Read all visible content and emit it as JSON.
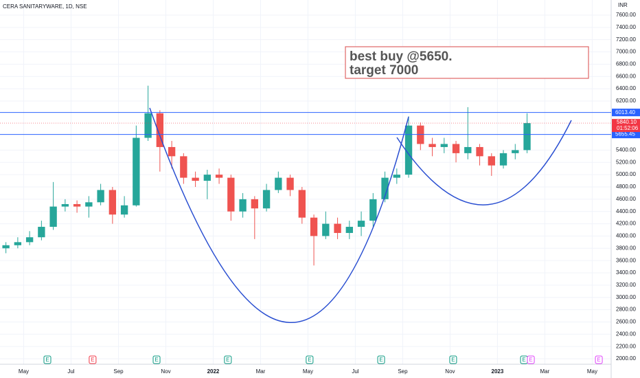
{
  "chart_data": {
    "type": "candlestick",
    "title": "CERA SANITARYWARE, 1D, NSE",
    "currency": "INR",
    "up_color": "#26a69a",
    "down_color": "#ef5350",
    "grid": true,
    "xlim": [
      0,
      25.8
    ],
    "ylim": [
      1933,
      7846
    ],
    "xticks": [
      {
        "value": 1,
        "label": "May"
      },
      {
        "value": 3,
        "label": "Jul"
      },
      {
        "value": 5,
        "label": "Sep"
      },
      {
        "value": 7,
        "label": "Nov"
      },
      {
        "value": 9,
        "label": "2022"
      },
      {
        "value": 11,
        "label": "Mar"
      },
      {
        "value": 13,
        "label": "May"
      },
      {
        "value": 15,
        "label": "Jul"
      },
      {
        "value": 17,
        "label": "Sep"
      },
      {
        "value": 19,
        "label": "Nov"
      },
      {
        "value": 21,
        "label": "2023"
      },
      {
        "value": 23,
        "label": "Mar"
      },
      {
        "value": 25,
        "label": "May"
      }
    ],
    "yticks": [
      {
        "value": 2000,
        "label": "2000.00"
      },
      {
        "value": 2200,
        "label": "2200.00"
      },
      {
        "value": 2400,
        "label": "2400.00"
      },
      {
        "value": 2600,
        "label": "2600.00"
      },
      {
        "value": 2800,
        "label": "2800.00"
      },
      {
        "value": 3000,
        "label": "3000.00"
      },
      {
        "value": 3200,
        "label": "3200.00"
      },
      {
        "value": 3400,
        "label": "3400.00"
      },
      {
        "value": 3600,
        "label": "3600.00"
      },
      {
        "value": 3800,
        "label": "3800.00"
      },
      {
        "value": 4000,
        "label": "4000.00"
      },
      {
        "value": 4200,
        "label": "4200.00"
      },
      {
        "value": 4400,
        "label": "4400.00"
      },
      {
        "value": 4600,
        "label": "4600.00"
      },
      {
        "value": 4800,
        "label": "4800.00"
      },
      {
        "value": 5000,
        "label": "5000.00"
      },
      {
        "value": 5200,
        "label": "5200.00"
      },
      {
        "value": 5400,
        "label": "5400.00"
      },
      {
        "value": 6200,
        "label": "6200.00"
      },
      {
        "value": 6400,
        "label": "6400.00"
      },
      {
        "value": 6600,
        "label": "6600.00"
      },
      {
        "value": 6800,
        "label": "6800.00"
      },
      {
        "value": 7000,
        "label": "7000.00"
      },
      {
        "value": 7200,
        "label": "7200.00"
      },
      {
        "value": 7400,
        "label": "7400.00"
      },
      {
        "value": 7600,
        "label": "7600.00"
      }
    ],
    "x": [
      0.25,
      0.75,
      1.25,
      1.75,
      2.25,
      2.75,
      3.25,
      3.75,
      4.25,
      4.75,
      5.25,
      5.75,
      6.25,
      6.75,
      7.25,
      7.75,
      8.25,
      8.75,
      9.25,
      9.75,
      10.25,
      10.75,
      11.25,
      11.75,
      12.25,
      12.75,
      13.25,
      13.75,
      14.25,
      14.75,
      15.25,
      15.75,
      16.25,
      16.75,
      17.25,
      17.75,
      18.25,
      18.75,
      19.25,
      19.75,
      20.25,
      20.75,
      21.25,
      21.75,
      22.25
    ],
    "open": [
      3800,
      3850,
      3900,
      3980,
      4150,
      4480,
      4520,
      4480,
      4550,
      4750,
      4350,
      4500,
      5600,
      6000,
      5450,
      5300,
      4950,
      4900,
      5000,
      4950,
      4400,
      4600,
      4450,
      4750,
      4950,
      4750,
      4300,
      4000,
      4200,
      4050,
      4150,
      4250,
      4600,
      4950,
      5000,
      5800,
      5500,
      5450,
      5500,
      5350,
      5450,
      5300,
      5150,
      5350,
      5400
    ],
    "high": [
      3900,
      3980,
      4080,
      4250,
      4880,
      4600,
      4580,
      4650,
      4850,
      4800,
      4650,
      5800,
      6450,
      6050,
      5550,
      5350,
      5050,
      5080,
      5100,
      5000,
      4700,
      4650,
      4850,
      5050,
      5000,
      4800,
      4350,
      4400,
      4300,
      4250,
      4400,
      4700,
      5050,
      5100,
      5950,
      5850,
      5600,
      5600,
      5550,
      6100,
      5500,
      5350,
      5400,
      5500,
      6000
    ],
    "low": [
      3720,
      3800,
      3850,
      3930,
      4100,
      4400,
      4380,
      4300,
      4500,
      4200,
      4300,
      4480,
      5550,
      5050,
      5100,
      4850,
      4800,
      4600,
      4850,
      4250,
      4300,
      3950,
      4400,
      4700,
      4650,
      4200,
      3520,
      3950,
      3950,
      3950,
      4000,
      4150,
      4550,
      4850,
      4950,
      5400,
      5300,
      5350,
      5200,
      5250,
      5150,
      4980,
      5100,
      5250,
      5350
    ],
    "close": [
      3850,
      3900,
      3980,
      4150,
      4480,
      4520,
      4480,
      4550,
      4750,
      4350,
      4500,
      5600,
      6000,
      5450,
      5300,
      4950,
      4900,
      5000,
      4950,
      4400,
      4600,
      4450,
      4750,
      4950,
      4750,
      4300,
      4000,
      4200,
      4050,
      4150,
      4250,
      4600,
      4950,
      5000,
      5800,
      5500,
      5450,
      5500,
      5350,
      5450,
      5300,
      5150,
      5350,
      5400,
      5840
    ],
    "levels": [
      {
        "value": 6013.4,
        "label": "6013.40",
        "color": "#2962ff"
      },
      {
        "value": 5655.45,
        "label": "5655.45",
        "color": "#2962ff"
      }
    ],
    "last_price": {
      "value": 5840.1,
      "label": "5840.10",
      "color": "#f23645"
    },
    "countdown": "01:52:06",
    "annotation": [
      "best buy @5650.",
      "target 7000"
    ],
    "events": [
      {
        "x": 2.0,
        "label": "E",
        "color": "#089981"
      },
      {
        "x": 3.91,
        "label": "E",
        "color": "#f23645"
      },
      {
        "x": 6.61,
        "label": "E",
        "color": "#089981"
      },
      {
        "x": 9.62,
        "label": "E",
        "color": "#089981"
      },
      {
        "x": 13.07,
        "label": "E",
        "color": "#089981"
      },
      {
        "x": 16.09,
        "label": "E",
        "color": "#089981"
      },
      {
        "x": 19.13,
        "label": "E",
        "color": "#089981"
      },
      {
        "x": 22.12,
        "label": "E",
        "color": "#089981"
      },
      {
        "x": 22.41,
        "label": "E",
        "color": "#e040fb"
      },
      {
        "x": 25.28,
        "label": "E",
        "color": "#e040fb"
      }
    ]
  }
}
